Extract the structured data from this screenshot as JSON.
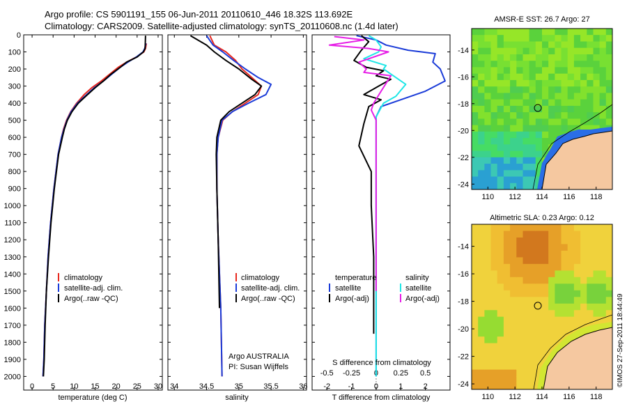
{
  "header": {
    "line1": "Argo profile: CS 5901191_155 06-Jun-2011 20110610_446 18.32S 113.692E",
    "line2": "Climatology: CARS2009. Satellite-adjusted climatology: synTS_20110608.nc (1.4d later)"
  },
  "credit": "©IMOS 27-Sep-2011 18:44:49",
  "colors": {
    "climatology": "#e8281e",
    "satellite": "#1a3bd8",
    "argo": "#000000",
    "sal_satellite": "#1ee6e6",
    "sal_argo": "#e61ee6",
    "land": "#f5c8a0"
  },
  "chart_data": [
    {
      "type": "line",
      "id": "temperature",
      "xlabel": "temperature (deg C)",
      "ylabel": "",
      "xlim": [
        -2,
        31
      ],
      "ylim": [
        0,
        2080
      ],
      "xticks": [
        "0",
        "5",
        "10",
        "15",
        "20",
        "25",
        "30"
      ],
      "yticks": [
        "0",
        "100",
        "200",
        "300",
        "400",
        "500",
        "600",
        "700",
        "800",
        "900",
        "1000",
        "1100",
        "1200",
        "1300",
        "1400",
        "1500",
        "1600",
        "1700",
        "1800",
        "1900",
        "2000"
      ],
      "legend": [
        "climatology",
        "satellite-adj. clim.",
        "Argo(..raw -QC)"
      ],
      "series": [
        {
          "name": "climatology",
          "x": [
            27.2,
            27.0,
            26.6,
            24.8,
            22.5,
            20.5,
            18.5,
            16.5,
            14.2,
            12.4,
            10.6,
            9.2,
            8.2,
            7.5,
            7.0,
            6.2,
            5.7,
            5.2,
            4.4,
            3.8,
            3.4,
            3.0,
            2.8,
            2.6
          ],
          "y": [
            50,
            80,
            100,
            130,
            160,
            190,
            230,
            270,
            310,
            350,
            400,
            450,
            500,
            550,
            600,
            700,
            800,
            900,
            1100,
            1300,
            1500,
            1700,
            1900,
            2000
          ]
        },
        {
          "name": "satellite-adj. clim.",
          "x": [
            27.1,
            26.8,
            26.4,
            24.8,
            22.8,
            21.0,
            19.0,
            17.0,
            14.8,
            13.0,
            10.8,
            9.3,
            8.3,
            7.6,
            7.0,
            6.2,
            5.7,
            5.2,
            4.4,
            3.8,
            3.4,
            3.0,
            2.8,
            2.6
          ],
          "y": [
            50,
            80,
            100,
            130,
            160,
            190,
            230,
            270,
            310,
            350,
            400,
            450,
            500,
            550,
            600,
            700,
            800,
            900,
            1100,
            1300,
            1500,
            1700,
            1900,
            2000
          ]
        },
        {
          "name": "Argo(..raw -QC)",
          "x": [
            27.0,
            26.9,
            26.5,
            25.0,
            22.5,
            21.0,
            18.8,
            17.0,
            15.0,
            13.2,
            11.0,
            9.5,
            8.4,
            7.7,
            7.2,
            6.3,
            5.8,
            5.3,
            4.5,
            3.9,
            3.4,
            3.1,
            2.9,
            2.7
          ],
          "y": [
            5,
            80,
            100,
            130,
            160,
            190,
            230,
            270,
            310,
            350,
            400,
            450,
            500,
            550,
            600,
            700,
            800,
            900,
            1100,
            1300,
            1500,
            1700,
            1900,
            2000
          ]
        }
      ]
    },
    {
      "type": "line",
      "id": "salinity",
      "xlabel": "salinity",
      "xlim": [
        33.9,
        36.05
      ],
      "ylim": [
        0,
        2080
      ],
      "xticks": [
        "34",
        "34.5",
        "35",
        "35.5",
        "36"
      ],
      "legend": [
        "climatology",
        "satellite-adj. clim.",
        "Argo(..raw -QC)"
      ],
      "annotation": [
        "Argo AUSTRALIA",
        "PI: Susan Wijffels"
      ],
      "series": [
        {
          "name": "climatology",
          "x": [
            34.55,
            34.62,
            34.8,
            34.95,
            35.05,
            35.2,
            35.35,
            35.3,
            35.1,
            34.9,
            34.75,
            34.68,
            34.66,
            34.66,
            34.68,
            34.72,
            34.74
          ],
          "y": [
            5,
            60,
            100,
            150,
            200,
            250,
            300,
            350,
            400,
            450,
            500,
            600,
            700,
            900,
            1200,
            1600,
            2000
          ]
        },
        {
          "name": "satellite-adj. clim.",
          "x": [
            34.5,
            34.6,
            34.75,
            34.92,
            35.1,
            35.3,
            35.5,
            35.42,
            35.15,
            34.9,
            34.74,
            34.68,
            34.66,
            34.66,
            34.68,
            34.72,
            34.74
          ],
          "y": [
            5,
            60,
            100,
            150,
            200,
            250,
            290,
            350,
            400,
            450,
            500,
            600,
            700,
            900,
            1200,
            1600,
            2000
          ]
        },
        {
          "name": "Argo(..raw -QC)",
          "x": [
            34.25,
            34.5,
            34.62,
            34.8,
            35.0,
            35.2,
            35.35,
            35.25,
            35.05,
            34.85,
            34.72,
            34.66,
            34.65,
            34.66,
            34.68,
            34.7
          ],
          "y": [
            5,
            60,
            100,
            150,
            200,
            260,
            300,
            350,
            400,
            450,
            500,
            600,
            700,
            900,
            1200,
            1600
          ]
        }
      ]
    },
    {
      "type": "line",
      "id": "differences",
      "xlabel": "T difference from climatology",
      "xlabel_top": "S difference from climatology",
      "xlim": [
        -2.6,
        3.0
      ],
      "ylim": [
        0,
        2080
      ],
      "xticks_T": [
        "-2",
        "-1",
        "0",
        "1",
        "2"
      ],
      "xticks_S": [
        "-0.5",
        "-0.25",
        "0",
        "0.25",
        "0.5"
      ],
      "legend_left_title": "temperature",
      "legend_right_title": "salinity",
      "legend": [
        "satellite",
        "Argo(-adj)",
        "satellite",
        "Argo(-adj)"
      ],
      "series": [
        {
          "name": "temperature satellite",
          "x": [
            -0.8,
            0.0,
            0.4,
            1.3,
            2.4,
            2.3,
            2.6,
            2.8,
            2.0,
            1.0,
            0.2,
            0.0,
            0.0,
            0.0,
            0.0,
            0.0,
            0.0,
            0.0
          ],
          "y": [
            5,
            30,
            60,
            90,
            110,
            160,
            200,
            270,
            330,
            380,
            420,
            480,
            600,
            800,
            1000,
            1300,
            1600,
            2000
          ]
        },
        {
          "name": "temperature Argo(-adj)",
          "x": [
            -0.6,
            -0.3,
            -0.6,
            -0.9,
            -0.4,
            0.3,
            0.0,
            0.6,
            0.1,
            -0.5,
            0.2,
            -0.3,
            -0.5,
            -0.7,
            -0.2,
            -0.2,
            -0.1,
            -0.1,
            -0.1
          ],
          "y": [
            5,
            40,
            90,
            150,
            190,
            210,
            240,
            260,
            300,
            350,
            380,
            420,
            520,
            650,
            800,
            1000,
            1300,
            1550,
            1750
          ]
        },
        {
          "name": "salinity satellite",
          "x": [
            -0.3,
            0.0,
            0.2,
            0.1,
            -0.5,
            0.4,
            0.3,
            0.7,
            1.2,
            0.8,
            0.3,
            0.0,
            0.0,
            0.0,
            0.0,
            0.0,
            0.0,
            0.0
          ],
          "y": [
            5,
            30,
            70,
            100,
            140,
            180,
            200,
            240,
            290,
            360,
            400,
            480,
            600,
            800,
            1000,
            1300,
            1600,
            2000
          ]
        },
        {
          "name": "salinity Argo(-adj)",
          "x": [
            -1.7,
            -0.5,
            -1.9,
            -0.3,
            0.5,
            -0.7,
            -0.4,
            -0.5,
            0.6,
            0.2,
            -0.1,
            -0.2,
            0.0,
            0.0,
            0.0,
            0.0
          ],
          "y": [
            10,
            30,
            60,
            80,
            100,
            160,
            200,
            220,
            240,
            330,
            400,
            440,
            500,
            700,
            1000,
            1500
          ]
        }
      ]
    },
    {
      "type": "heatmap",
      "id": "sst-map",
      "title": "AMSR-E SST: 26.7 Argo: 27",
      "xlim": [
        108.8,
        119.2
      ],
      "ylim": [
        -24.4,
        -12.4
      ],
      "xticks": [
        "110",
        "112",
        "114",
        "116",
        "118"
      ],
      "yticks": [
        "-14",
        "-16",
        "-18",
        "-20",
        "-22",
        "-24"
      ],
      "marker": {
        "lon": 113.692,
        "lat": -18.32
      }
    },
    {
      "type": "heatmap",
      "id": "sla-map",
      "title": "Altimetric SLA: 0.23 Argo: 0.12",
      "xlim": [
        108.8,
        119.2
      ],
      "ylim": [
        -24.4,
        -12.4
      ],
      "xticks": [
        "110",
        "112",
        "114",
        "116",
        "118"
      ],
      "yticks": [
        "-14",
        "-16",
        "-18",
        "-20",
        "-22",
        "-24"
      ],
      "marker": {
        "lon": 113.692,
        "lat": -18.32
      }
    }
  ]
}
